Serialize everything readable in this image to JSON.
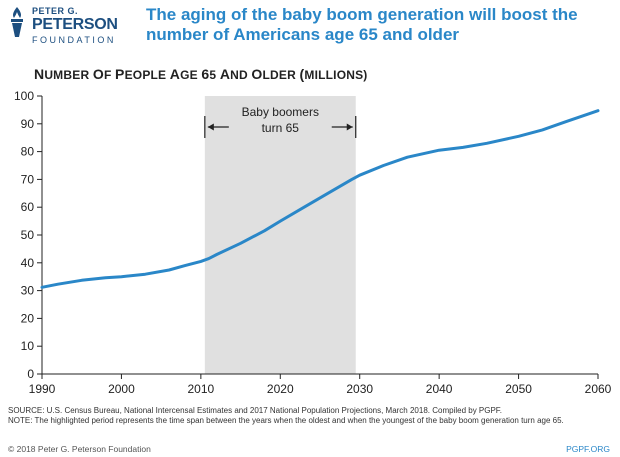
{
  "logo": {
    "line1": "PETER G.",
    "line2": "PETERSON",
    "line3": "FOUNDATION",
    "icon": "torch-icon"
  },
  "headline": "The aging of the baby boom generation will boost the number of Americans age 65 and older",
  "chart_title": "Number of People Age 65 and Older (Millions)",
  "chart_data": {
    "type": "line",
    "title": "Number of People Age 65 and Older (Millions)",
    "xlabel": "",
    "ylabel": "",
    "xlim": [
      1990,
      2060
    ],
    "ylim": [
      0,
      100
    ],
    "x_ticks": [
      1990,
      2000,
      2010,
      2020,
      2030,
      2040,
      2050,
      2060
    ],
    "y_ticks": [
      0,
      10,
      20,
      30,
      40,
      50,
      60,
      70,
      80,
      90,
      100
    ],
    "grid": false,
    "series": [
      {
        "color": "#2a87c8",
        "x": [
          1990,
          1992,
          1995,
          1998,
          2000,
          2003,
          2006,
          2008,
          2010,
          2011,
          2012,
          2015,
          2018,
          2020,
          2023,
          2026,
          2029,
          2030,
          2033,
          2036,
          2040,
          2043,
          2046,
          2050,
          2053,
          2056,
          2060
        ],
        "y": [
          31.2,
          32.3,
          33.7,
          34.6,
          35.0,
          35.9,
          37.4,
          39.0,
          40.5,
          41.5,
          43.0,
          47.0,
          51.5,
          55.0,
          60.0,
          65.0,
          70.0,
          71.5,
          75.0,
          78.0,
          80.5,
          81.5,
          83.0,
          85.5,
          87.8,
          90.8,
          94.7
        ]
      }
    ],
    "highlight": {
      "x_start": 2010.5,
      "x_end": 2029.5,
      "color": "#e0e0e0",
      "label_line1": "Baby boomers",
      "label_line2": "turn 65"
    }
  },
  "source_text": "SOURCE: U.S. Census Bureau, National Intercensal Estimates and 2017 National Population Projections, March 2018. Compiled by PGPF.",
  "note_text": "NOTE: The highlighted period represents the time span between the years when the oldest and when the youngest of the baby boom generation turn age 65.",
  "footer": {
    "copyright": "© 2018 Peter G. Peterson Foundation",
    "site": "PGPF.ORG"
  }
}
